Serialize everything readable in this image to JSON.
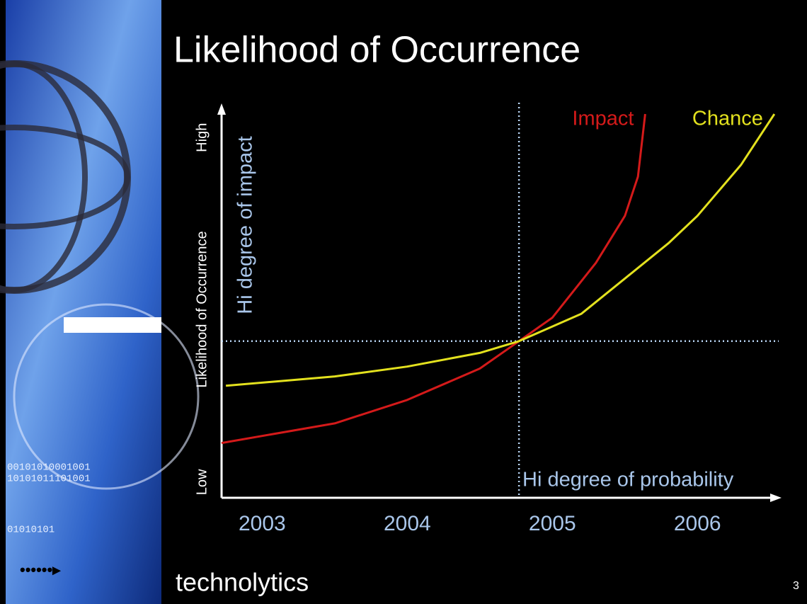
{
  "title": "Likelihood of Occurrence",
  "brand": "technolytics",
  "page_number": "3",
  "chart_data": {
    "type": "line",
    "y_label": "Likelihood of Occurrence",
    "xlim": [
      2002.72,
      2006.56
    ],
    "xticks": [
      2003,
      2004,
      2005,
      2006
    ],
    "ylim": [
      0,
      100
    ],
    "yticks": [
      {
        "value": 4,
        "label": "Low"
      },
      {
        "value": 92,
        "label": "High"
      }
    ],
    "vline": 2004.77,
    "hline": 40,
    "annotations": [
      "Hi degree of impact",
      "Hi degree of probability"
    ],
    "series": [
      {
        "name": "Impact",
        "color": "#d41a1a",
        "x": [
          2002.72,
          2003.5,
          2004,
          2004.5,
          2004.77,
          2005,
          2005.3,
          2005.5,
          2005.59,
          2005.64
        ],
        "values": [
          14,
          19,
          25,
          33,
          40,
          46,
          60,
          72,
          82,
          98
        ]
      },
      {
        "name": "Chance",
        "color": "#e3e11e",
        "x": [
          2002.75,
          2003.5,
          2004,
          2004.5,
          2004.77,
          2005.2,
          2005.5,
          2005.8,
          2006,
          2006.3,
          2006.53
        ],
        "values": [
          28.6,
          31,
          33.5,
          37,
          40,
          47,
          56,
          65,
          72,
          85,
          98
        ]
      }
    ]
  }
}
